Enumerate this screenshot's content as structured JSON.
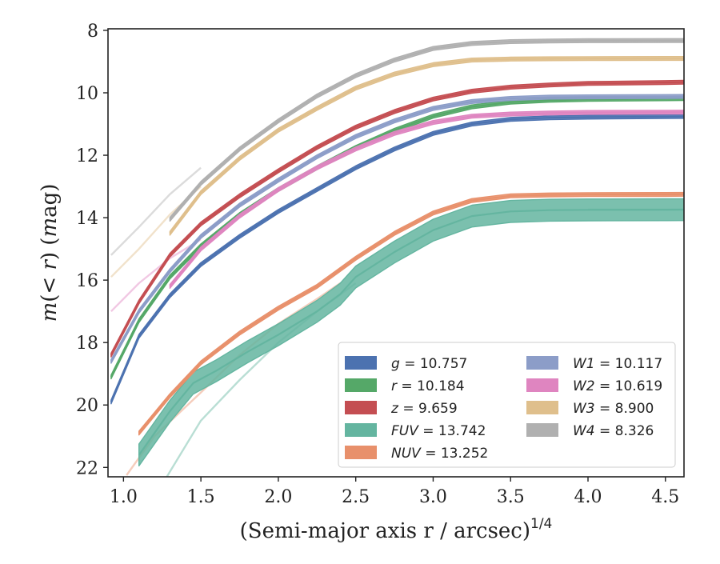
{
  "chart_data": {
    "type": "line",
    "xlabel": "(Semi-major axis r / arcsec)^{1/4}",
    "ylabel": "m(< r) (mag)",
    "xlim": [
      0.9,
      4.62
    ],
    "ylim": [
      22.3,
      7.95
    ],
    "y_inverted": true,
    "x_ticks": [
      "1.0",
      "1.5",
      "2.0",
      "2.5",
      "3.0",
      "3.5",
      "4.0",
      "4.5"
    ],
    "y_ticks": [
      "8",
      "10",
      "12",
      "14",
      "16",
      "18",
      "20",
      "22"
    ],
    "legend_position": "lower-right",
    "series": [
      {
        "name": "g = 10.757",
        "color": "#4c72b0",
        "band": 0.06,
        "points": [
          [
            0.92,
            19.9
          ],
          [
            1.1,
            17.8
          ],
          [
            1.3,
            16.5
          ],
          [
            1.5,
            15.5
          ],
          [
            1.75,
            14.6
          ],
          [
            2.0,
            13.8
          ],
          [
            2.25,
            13.1
          ],
          [
            2.5,
            12.4
          ],
          [
            2.75,
            11.8
          ],
          [
            3.0,
            11.3
          ],
          [
            3.25,
            11.0
          ],
          [
            3.5,
            10.85
          ],
          [
            3.75,
            10.8
          ],
          [
            4.0,
            10.78
          ],
          [
            4.5,
            10.76
          ],
          [
            4.62,
            10.757
          ]
        ]
      },
      {
        "name": "r = 10.184",
        "color": "#55a868",
        "band": 0.06,
        "points": [
          [
            0.92,
            19.1
          ],
          [
            1.1,
            17.3
          ],
          [
            1.3,
            15.9
          ],
          [
            1.5,
            14.9
          ],
          [
            1.75,
            13.9
          ],
          [
            2.0,
            13.1
          ],
          [
            2.25,
            12.4
          ],
          [
            2.5,
            11.75
          ],
          [
            2.75,
            11.2
          ],
          [
            3.0,
            10.75
          ],
          [
            3.25,
            10.45
          ],
          [
            3.5,
            10.3
          ],
          [
            3.75,
            10.24
          ],
          [
            4.0,
            10.21
          ],
          [
            4.5,
            10.19
          ],
          [
            4.62,
            10.184
          ]
        ]
      },
      {
        "name": "z = 9.659",
        "color": "#c44e52",
        "band": 0.06,
        "points": [
          [
            0.92,
            18.4
          ],
          [
            1.1,
            16.7
          ],
          [
            1.3,
            15.2
          ],
          [
            1.5,
            14.2
          ],
          [
            1.75,
            13.3
          ],
          [
            2.0,
            12.5
          ],
          [
            2.25,
            11.75
          ],
          [
            2.5,
            11.1
          ],
          [
            2.75,
            10.6
          ],
          [
            3.0,
            10.2
          ],
          [
            3.25,
            9.95
          ],
          [
            3.5,
            9.82
          ],
          [
            3.75,
            9.75
          ],
          [
            4.0,
            9.7
          ],
          [
            4.5,
            9.67
          ],
          [
            4.62,
            9.659
          ]
        ]
      },
      {
        "name": "FUV = 13.742",
        "color": "#64b5a0",
        "band": 0.35,
        "points": [
          [
            1.1,
            21.6
          ],
          [
            1.3,
            20.2
          ],
          [
            1.45,
            19.3
          ],
          [
            1.6,
            18.9
          ],
          [
            1.8,
            18.3
          ],
          [
            2.0,
            17.75
          ],
          [
            2.25,
            17.0
          ],
          [
            2.4,
            16.45
          ],
          [
            2.5,
            15.9
          ],
          [
            2.75,
            15.1
          ],
          [
            3.0,
            14.4
          ],
          [
            3.25,
            13.95
          ],
          [
            3.5,
            13.8
          ],
          [
            3.75,
            13.76
          ],
          [
            4.0,
            13.75
          ],
          [
            4.5,
            13.745
          ],
          [
            4.62,
            13.742
          ]
        ]
      },
      {
        "name": "NUV = 13.252",
        "color": "#e8906b",
        "band": 0.06,
        "points": [
          [
            1.1,
            20.9
          ],
          [
            1.3,
            19.7
          ],
          [
            1.5,
            18.65
          ],
          [
            1.75,
            17.7
          ],
          [
            2.0,
            16.9
          ],
          [
            2.25,
            16.2
          ],
          [
            2.5,
            15.3
          ],
          [
            2.75,
            14.5
          ],
          [
            3.0,
            13.85
          ],
          [
            3.25,
            13.45
          ],
          [
            3.5,
            13.3
          ],
          [
            3.75,
            13.27
          ],
          [
            4.0,
            13.26
          ],
          [
            4.5,
            13.255
          ],
          [
            4.62,
            13.252
          ]
        ]
      },
      {
        "name": "W1 = 10.117",
        "color": "#8c9dc8",
        "band": 0.06,
        "points": [
          [
            0.92,
            18.6
          ],
          [
            1.1,
            17.0
          ],
          [
            1.3,
            15.7
          ],
          [
            1.5,
            14.6
          ],
          [
            1.75,
            13.6
          ],
          [
            2.0,
            12.8
          ],
          [
            2.25,
            12.05
          ],
          [
            2.5,
            11.4
          ],
          [
            2.75,
            10.9
          ],
          [
            3.0,
            10.5
          ],
          [
            3.25,
            10.28
          ],
          [
            3.5,
            10.18
          ],
          [
            3.75,
            10.14
          ],
          [
            4.0,
            10.13
          ],
          [
            4.5,
            10.12
          ],
          [
            4.62,
            10.117
          ]
        ]
      },
      {
        "name": "W2 = 10.619",
        "color": "#df85c0",
        "band": 0.06,
        "points": [
          [
            1.3,
            16.2
          ],
          [
            1.5,
            15.0
          ],
          [
            1.75,
            13.95
          ],
          [
            2.0,
            13.1
          ],
          [
            2.25,
            12.4
          ],
          [
            2.5,
            11.8
          ],
          [
            2.75,
            11.3
          ],
          [
            3.0,
            10.95
          ],
          [
            3.25,
            10.75
          ],
          [
            3.5,
            10.68
          ],
          [
            3.75,
            10.65
          ],
          [
            4.0,
            10.63
          ],
          [
            4.5,
            10.62
          ],
          [
            4.62,
            10.619
          ]
        ]
      },
      {
        "name": "W3 = 8.900",
        "color": "#dfbf8c",
        "band": 0.06,
        "points": [
          [
            1.3,
            14.5
          ],
          [
            1.5,
            13.2
          ],
          [
            1.75,
            12.1
          ],
          [
            2.0,
            11.2
          ],
          [
            2.25,
            10.5
          ],
          [
            2.5,
            9.85
          ],
          [
            2.75,
            9.4
          ],
          [
            3.0,
            9.1
          ],
          [
            3.25,
            8.95
          ],
          [
            3.5,
            8.92
          ],
          [
            3.75,
            8.91
          ],
          [
            4.0,
            8.905
          ],
          [
            4.5,
            8.9
          ],
          [
            4.62,
            8.9
          ]
        ]
      },
      {
        "name": "W4 = 8.326",
        "color": "#b0b0b0",
        "band": 0.06,
        "points": [
          [
            1.3,
            14.05
          ],
          [
            1.5,
            12.9
          ],
          [
            1.75,
            11.8
          ],
          [
            2.0,
            10.9
          ],
          [
            2.25,
            10.1
          ],
          [
            2.5,
            9.45
          ],
          [
            2.75,
            8.95
          ],
          [
            3.0,
            8.58
          ],
          [
            3.25,
            8.42
          ],
          [
            3.5,
            8.36
          ],
          [
            3.75,
            8.34
          ],
          [
            4.0,
            8.33
          ],
          [
            4.5,
            8.326
          ],
          [
            4.62,
            8.326
          ]
        ]
      }
    ],
    "faint_extensions": [
      {
        "color": "#b0b0b0",
        "points": [
          [
            0.92,
            15.2
          ],
          [
            1.1,
            14.3
          ],
          [
            1.3,
            13.25
          ],
          [
            1.5,
            12.4
          ]
        ]
      },
      {
        "color": "#dfbf8c",
        "points": [
          [
            0.92,
            15.9
          ],
          [
            1.1,
            15.0
          ],
          [
            1.3,
            13.9
          ],
          [
            1.5,
            13.0
          ]
        ]
      },
      {
        "color": "#df85c0",
        "points": [
          [
            0.92,
            17.0
          ],
          [
            1.1,
            16.1
          ],
          [
            1.3,
            15.3
          ],
          [
            1.5,
            14.7
          ]
        ]
      },
      {
        "color": "#64b5a0",
        "points": [
          [
            1.28,
            22.3
          ],
          [
            1.5,
            20.5
          ],
          [
            1.75,
            19.2
          ],
          [
            2.0,
            18.0
          ],
          [
            2.25,
            17.0
          ],
          [
            2.5,
            16.1
          ]
        ]
      },
      {
        "color": "#e8906b",
        "points": [
          [
            1.02,
            22.25
          ],
          [
            1.2,
            21.0
          ],
          [
            1.5,
            19.6
          ],
          [
            1.75,
            18.4
          ],
          [
            2.0,
            17.4
          ],
          [
            2.25,
            16.6
          ],
          [
            2.4,
            16.1
          ]
        ]
      },
      {
        "color": "#64b5a0",
        "points": [
          [
            4.0,
            13.74
          ],
          [
            4.62,
            13.742
          ]
        ]
      },
      {
        "color": "#e8906b",
        "points": [
          [
            4.3,
            13.25
          ],
          [
            4.62,
            13.252
          ]
        ]
      },
      {
        "color": "#b0b0b0",
        "points": [
          [
            4.0,
            8.33
          ],
          [
            4.62,
            8.326
          ]
        ]
      },
      {
        "color": "#dfbf8c",
        "points": [
          [
            3.7,
            8.91
          ],
          [
            4.62,
            8.9
          ]
        ]
      }
    ]
  }
}
